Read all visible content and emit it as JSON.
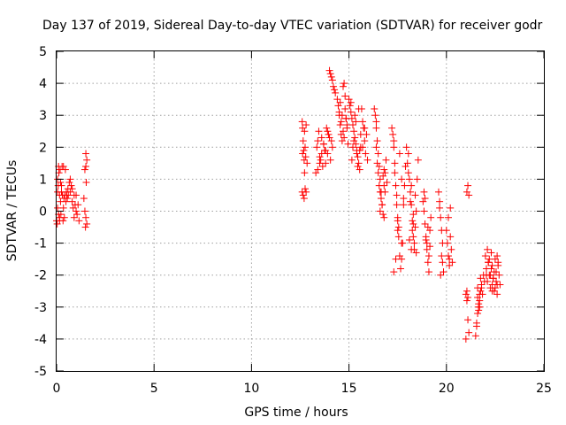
{
  "chart_data": {
    "type": "scatter",
    "title": "Day 137 of 2019, Sidereal Day-to-day VTEC variation (SDTVAR) for receiver godr",
    "xlabel": "GPS time / hours",
    "ylabel": "SDTVAR / TECUs",
    "xlim": [
      0,
      25
    ],
    "ylim": [
      -5,
      5
    ],
    "xticks": [
      "0",
      "5",
      "10",
      "15",
      "20",
      "25"
    ],
    "yticks": [
      "-5",
      "-4",
      "-3",
      "-2",
      "-1",
      "0",
      "1",
      "2",
      "3",
      "4",
      "5"
    ],
    "grid": true,
    "marker": "+",
    "colors": {
      "series": "#ff0000",
      "grid": "#a0a0a0",
      "axis": "#000000"
    },
    "series": [
      {
        "name": "SDTVAR",
        "x": [
          0.0,
          0.03,
          0.05,
          0.08,
          0.1,
          0.12,
          0.15,
          0.18,
          0.2,
          0.22,
          0.25,
          0.28,
          0.3,
          0.33,
          0.35,
          0.38,
          0.4,
          0.42,
          0.45,
          0.48,
          0.5,
          0.52,
          0.55,
          0.58,
          0.6,
          0.65,
          0.7,
          0.75,
          0.8,
          0.85,
          0.9,
          0.95,
          1.0,
          1.05,
          1.1,
          1.15,
          1.4,
          1.45,
          1.5,
          1.55,
          1.45,
          1.5,
          1.55,
          1.5,
          1.48,
          1.52,
          0.05,
          0.1,
          0.15,
          0.2,
          0.25,
          0.3,
          0.35,
          0.7,
          0.8,
          0.9,
          1.0,
          0.05,
          0.15,
          12.6,
          12.62,
          12.65,
          12.68,
          12.7,
          12.72,
          12.75,
          12.78,
          12.8,
          12.85,
          12.6,
          12.65,
          12.7,
          12.75,
          12.8,
          12.62,
          12.72,
          13.3,
          13.35,
          13.4,
          13.45,
          13.5,
          13.55,
          13.6,
          13.65,
          13.7,
          13.75,
          13.8,
          13.85,
          13.9,
          13.95,
          14.0,
          14.05,
          14.1,
          14.15,
          13.4,
          13.5,
          13.6,
          13.7,
          13.8,
          13.9,
          14.0,
          14.05,
          14.1,
          14.15,
          14.2,
          14.25,
          14.3,
          14.4,
          14.45,
          14.5,
          14.55,
          14.6,
          14.65,
          14.7,
          14.75,
          14.8,
          14.85,
          14.9,
          14.95,
          14.5,
          14.6,
          14.7,
          14.8,
          14.9,
          14.55,
          14.65,
          14.75,
          14.85,
          15.0,
          15.05,
          15.1,
          15.15,
          15.2,
          15.25,
          15.3,
          15.35,
          15.4,
          15.45,
          15.5,
          15.55,
          15.6,
          15.65,
          15.7,
          15.75,
          15.8,
          15.85,
          15.9,
          15.95,
          15.1,
          15.2,
          15.3,
          15.4,
          15.5,
          15.6,
          15.7,
          15.8,
          15.15,
          15.25,
          15.35,
          15.45,
          15.55,
          16.3,
          16.35,
          16.4,
          16.45,
          16.5,
          16.55,
          16.6,
          16.65,
          16.7,
          16.75,
          16.8,
          16.85,
          16.9,
          16.95,
          16.4,
          16.5,
          16.6,
          16.7,
          16.8,
          16.45,
          16.55,
          16.65,
          16.75,
          16.85,
          16.4,
          16.6,
          16.8,
          17.2,
          17.25,
          17.3,
          17.35,
          17.4,
          17.45,
          17.5,
          17.55,
          17.6,
          17.65,
          17.7,
          17.75,
          17.8,
          17.85,
          17.9,
          17.95,
          17.3,
          17.4,
          17.5,
          17.6,
          17.7,
          17.8,
          17.3,
          17.5,
          17.7,
          17.35,
          17.45,
          17.55,
          18.0,
          18.05,
          18.1,
          18.15,
          18.2,
          18.25,
          18.3,
          18.35,
          18.4,
          18.45,
          18.5,
          18.55,
          18.1,
          18.2,
          18.3,
          18.4,
          18.15,
          18.25,
          18.35,
          18.05,
          18.2,
          18.3,
          18.45,
          18.8,
          18.85,
          18.9,
          18.95,
          19.0,
          19.05,
          19.1,
          19.15,
          19.2,
          18.9,
          19.0,
          19.1,
          18.85,
          18.95,
          19.05,
          19.15,
          19.6,
          19.65,
          19.7,
          19.75,
          19.8,
          19.85,
          19.7,
          19.75,
          19.65,
          19.8,
          20.0,
          20.05,
          20.1,
          20.15,
          20.2,
          20.25,
          20.3,
          20.1,
          20.2,
          20.15,
          21.0,
          21.05,
          21.1,
          21.15,
          21.0,
          21.05,
          21.1,
          21.1,
          21.15,
          21.05,
          21.5,
          21.55,
          21.6,
          21.65,
          21.7,
          21.75,
          21.8,
          21.85,
          21.9,
          21.95,
          21.6,
          21.7,
          21.8,
          21.55,
          21.65,
          21.75,
          21.6,
          21.7,
          21.65,
          22.0,
          22.05,
          22.1,
          22.15,
          22.2,
          22.25,
          22.3,
          22.35,
          22.4,
          22.45,
          22.5,
          22.55,
          22.6,
          22.65,
          22.7,
          22.75,
          22.1,
          22.2,
          22.3,
          22.4,
          22.5,
          22.6,
          22.15,
          22.25,
          22.35,
          22.45,
          22.55,
          22.65,
          22.05,
          22.35,
          22.6
        ],
        "y": [
          -0.3,
          -0.4,
          0.6,
          0.8,
          1.4,
          1.2,
          -0.2,
          1.3,
          0.9,
          -0.1,
          0.6,
          1.4,
          0.5,
          -0.3,
          1.4,
          0.4,
          -0.2,
          0.5,
          1.3,
          0.3,
          0.6,
          0.5,
          0.4,
          0.7,
          0.5,
          0.9,
          0.6,
          0.8,
          0.3,
          0.1,
          0.5,
          0.2,
          0.0,
          -0.1,
          0.2,
          -0.3,
          0.4,
          1.3,
          1.4,
          -0.4,
          0.0,
          1.8,
          1.6,
          -0.2,
          -0.5,
          0.9,
          0.1,
          -0.1,
          -0.3,
          0.3,
          0.8,
          0.5,
          0.1,
          1.0,
          0.7,
          -0.2,
          0.5,
          1.0,
          0.5,
          2.8,
          2.6,
          2.2,
          1.9,
          1.6,
          2.5,
          2.0,
          1.7,
          2.7,
          1.5,
          0.6,
          0.5,
          0.4,
          0.7,
          0.6,
          1.8,
          1.2,
          1.2,
          2.0,
          2.2,
          2.5,
          1.7,
          1.6,
          2.3,
          1.4,
          2.1,
          1.9,
          1.5,
          2.6,
          1.8,
          2.4,
          2.3,
          1.6,
          2.2,
          2.0,
          1.3,
          1.5,
          1.8,
          2.1,
          1.9,
          2.5,
          4.4,
          4.3,
          4.2,
          4.1,
          3.9,
          3.8,
          3.7,
          3.5,
          3.3,
          3.0,
          2.7,
          2.4,
          2.2,
          3.9,
          4.0,
          3.6,
          2.9,
          2.6,
          2.1,
          3.1,
          2.8,
          2.5,
          3.2,
          2.7,
          3.4,
          3.0,
          2.3,
          2.9,
          3.5,
          3.3,
          3.1,
          2.9,
          2.7,
          2.5,
          2.3,
          2.1,
          1.9,
          1.7,
          1.5,
          1.3,
          2.0,
          3.2,
          2.8,
          2.6,
          2.2,
          1.8,
          2.4,
          1.6,
          3.4,
          2.0,
          3.0,
          1.8,
          3.2,
          2.4,
          2.0,
          2.6,
          1.6,
          2.2,
          2.8,
          1.4,
          1.9,
          3.2,
          3.0,
          2.6,
          2.2,
          1.8,
          1.4,
          1.0,
          0.6,
          0.2,
          -0.1,
          0.8,
          1.2,
          1.6,
          0.9,
          2.8,
          1.2,
          0.6,
          0.2,
          -0.2,
          1.5,
          0.8,
          0.4,
          1.1,
          0.6,
          2.0,
          0.0,
          1.3,
          2.6,
          2.4,
          2.0,
          1.5,
          0.8,
          0.2,
          -0.3,
          -0.8,
          -1.4,
          -1.8,
          -1.5,
          -1.0,
          0.2,
          0.8,
          1.4,
          2.0,
          -1.9,
          -1.5,
          -0.6,
          1.8,
          1.0,
          0.4,
          2.2,
          -0.2,
          -1.0,
          1.2,
          0.5,
          -0.5,
          1.5,
          1.2,
          1.0,
          0.6,
          0.2,
          -0.3,
          -0.8,
          -1.2,
          -0.5,
          0.0,
          1.0,
          1.6,
          -0.9,
          -1.2,
          -0.4,
          0.5,
          0.3,
          -0.6,
          -1.0,
          1.8,
          0.8,
          -0.1,
          -1.3,
          0.3,
          0.0,
          -0.4,
          -0.8,
          -1.2,
          -1.6,
          -1.9,
          -0.6,
          -0.2,
          0.4,
          -1.0,
          -1.4,
          0.6,
          -0.9,
          -0.5,
          -1.1,
          0.6,
          0.3,
          -0.2,
          -0.6,
          -1.0,
          -1.9,
          -2.0,
          -1.4,
          0.1,
          -1.6,
          -0.6,
          -1.0,
          -1.4,
          -1.7,
          -0.8,
          -1.2,
          -1.6,
          -0.2,
          0.1,
          -1.5,
          -2.6,
          -2.8,
          -3.4,
          -3.8,
          -4.0,
          -2.5,
          -2.7,
          0.8,
          0.5,
          0.6,
          -3.9,
          -3.6,
          -3.2,
          -3.0,
          -2.8,
          -2.5,
          -2.3,
          -2.6,
          -2.0,
          -2.2,
          -2.7,
          -3.0,
          -2.4,
          -3.5,
          -2.9,
          -2.1,
          -2.4,
          -2.6,
          -3.1,
          -1.4,
          -1.8,
          -2.2,
          -1.6,
          -2.0,
          -2.4,
          -1.3,
          -1.7,
          -2.1,
          -2.5,
          -1.5,
          -1.9,
          -2.3,
          -1.6,
          -2.0,
          -2.3,
          -1.2,
          -1.5,
          -1.8,
          -2.1,
          -2.4,
          -2.6,
          -1.6,
          -2.0,
          -2.3,
          -1.9,
          -2.2,
          -1.7,
          -2.0,
          -2.5,
          -1.4
        ]
      }
    ]
  }
}
